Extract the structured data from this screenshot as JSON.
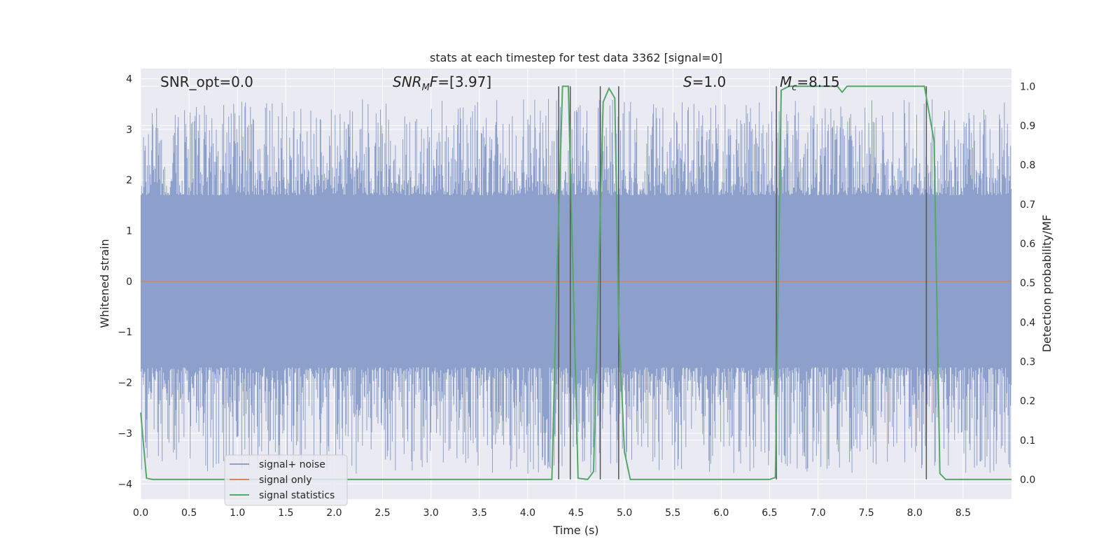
{
  "chart_data": {
    "type": "line",
    "title": "stats at each timestep for test data 3362 [signal=0]",
    "xlabel": "Time (s)",
    "ylabel_left": "Whitened strain",
    "ylabel_right": "Detection probability/MF",
    "xlim": [
      0.0,
      9.0
    ],
    "ylim_left": [
      -4.3,
      4.2
    ],
    "ylim_right": [
      -0.05,
      1.045
    ],
    "x_ticks": [
      "0.0",
      "0.5",
      "1.0",
      "1.5",
      "2.0",
      "2.5",
      "3.0",
      "3.5",
      "4.0",
      "4.5",
      "5.0",
      "5.5",
      "6.0",
      "6.5",
      "7.0",
      "7.5",
      "8.0",
      "8.5"
    ],
    "y_ticks_left": [
      "−4",
      "−3",
      "−2",
      "−1",
      "0",
      "1",
      "2",
      "3",
      "4"
    ],
    "y_ticks_right": [
      "0.0",
      "0.1",
      "0.2",
      "0.3",
      "0.4",
      "0.5",
      "0.6",
      "0.7",
      "0.8",
      "0.9",
      "1.0"
    ],
    "grid": true,
    "legend_position": "lower-left",
    "annotations": [
      {
        "id": "snr-opt",
        "text": "SNR_opt=0.0",
        "x": 0.2,
        "y": 3.85
      },
      {
        "id": "snr-mf",
        "text": "=[3.97]",
        "math_label": "SNR",
        "math_sub": "M",
        "math_after": "F",
        "x": 2.6,
        "y": 3.85
      },
      {
        "id": "s-value",
        "text": "=1.0",
        "math_label": "S",
        "x": 5.6,
        "y": 3.85
      },
      {
        "id": "mc-value",
        "text": "=8.15",
        "math_label": "M",
        "math_sub": "c",
        "x": 6.6,
        "y": 3.85
      }
    ],
    "series": [
      {
        "name": "signal+ noise",
        "color": "#8da0cb",
        "axis": "left",
        "description_values": "noise envelope",
        "envelope": {
          "dense_upper": 1.5,
          "dense_lower": -1.6,
          "peak_upper_range": [
            1.7,
            3.6
          ],
          "peak_lower_range": [
            -1.7,
            -3.8
          ]
        }
      },
      {
        "name": "signal only",
        "color": "#dd8452",
        "axis": "left",
        "values_constant": 0.0
      },
      {
        "name": "signal statistics",
        "color": "#55a868",
        "axis": "right",
        "x": [
          0.0,
          0.06,
          0.12,
          4.25,
          4.3,
          4.36,
          4.42,
          4.46,
          4.52,
          4.62,
          4.68,
          4.72,
          4.78,
          4.84,
          4.9,
          4.94,
          5.0,
          5.06,
          6.5,
          6.56,
          6.62,
          6.7,
          7.0,
          7.2,
          7.25,
          7.3,
          7.5,
          8.1,
          8.2,
          8.26,
          8.32,
          8.38,
          9.0
        ],
        "y": [
          0.17,
          0.003,
          0.0,
          0.0,
          0.5,
          1.0,
          1.0,
          0.6,
          0.003,
          0.0,
          0.02,
          0.4,
          0.96,
          0.995,
          0.97,
          0.4,
          0.07,
          0.0,
          0.0,
          0.005,
          0.99,
          1.0,
          1.0,
          1.0,
          0.985,
          1.0,
          1.0,
          1.0,
          0.86,
          0.015,
          0.0,
          0.0,
          0.0
        ]
      }
    ],
    "vertical_lines": [
      4.32,
      4.44,
      4.75,
      4.94,
      6.57,
      8.12
    ]
  },
  "legend": {
    "items": [
      {
        "label": "signal+ noise",
        "color": "#8da0cb"
      },
      {
        "label": "signal only",
        "color": "#dd8452"
      },
      {
        "label": "signal statistics",
        "color": "#55a868"
      }
    ]
  },
  "colors": {
    "plot_bg": "#eaeaf2",
    "grid": "#ffffff",
    "vline": "#555555"
  }
}
